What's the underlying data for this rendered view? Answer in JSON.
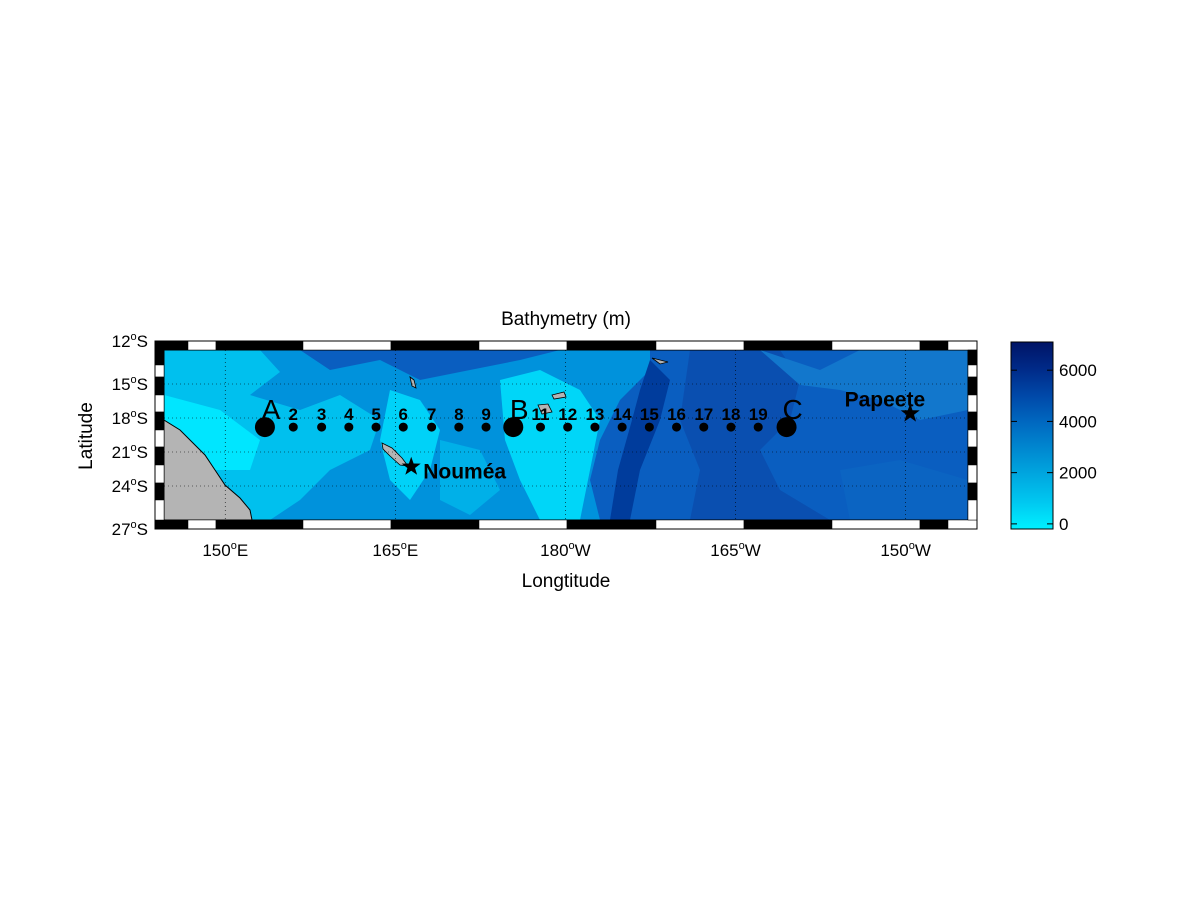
{
  "title": "Bathymetry (m)",
  "xlabel": "Longtitude",
  "ylabel": "Latitude",
  "lat_ticks": [
    {
      "deg": "12",
      "hemi": "S",
      "lat": -12
    },
    {
      "deg": "15",
      "hemi": "S",
      "lat": -15
    },
    {
      "deg": "18",
      "hemi": "S",
      "lat": -18
    },
    {
      "deg": "21",
      "hemi": "S",
      "lat": -21
    },
    {
      "deg": "24",
      "hemi": "S",
      "lat": -24
    },
    {
      "deg": "27",
      "hemi": "S",
      "lat": -27
    }
  ],
  "lon_ticks": [
    {
      "deg": "150",
      "hemi": "E",
      "lon": 150
    },
    {
      "deg": "165",
      "hemi": "E",
      "lon": 165
    },
    {
      "deg": "180",
      "hemi": "W",
      "lon": 180
    },
    {
      "deg": "165",
      "hemi": "W",
      "lon": 195
    },
    {
      "deg": "150",
      "hemi": "W",
      "lon": 210
    }
  ],
  "map_extent": {
    "lon_min": 144.6,
    "lon_max": 215.5,
    "lat_min": -27,
    "lat_max": -12
  },
  "colorbar": {
    "min": -200,
    "max": 7100,
    "ticks": [
      {
        "label": "0",
        "value": 0
      },
      {
        "label": "2000",
        "value": 2000
      },
      {
        "label": "4000",
        "value": 4000
      },
      {
        "label": "6000",
        "value": 6000
      }
    ],
    "colors": [
      "#00f0ff",
      "#00c8f0",
      "#00a8e0",
      "#0088d0",
      "#0068c0",
      "#0048a8",
      "#002a88",
      "#001466"
    ]
  },
  "stations": [
    {
      "label": "A",
      "lon": 153.5,
      "lat": -18.8,
      "major": true
    },
    {
      "label": "2",
      "lon": 156.0,
      "lat": -18.8,
      "major": false
    },
    {
      "label": "3",
      "lon": 158.5,
      "lat": -18.8,
      "major": false
    },
    {
      "label": "4",
      "lon": 160.9,
      "lat": -18.8,
      "major": false
    },
    {
      "label": "5",
      "lon": 163.3,
      "lat": -18.8,
      "major": false
    },
    {
      "label": "6",
      "lon": 165.7,
      "lat": -18.8,
      "major": false
    },
    {
      "label": "7",
      "lon": 168.2,
      "lat": -18.8,
      "major": false
    },
    {
      "label": "8",
      "lon": 170.6,
      "lat": -18.8,
      "major": false
    },
    {
      "label": "9",
      "lon": 173.0,
      "lat": -18.8,
      "major": false
    },
    {
      "label": "B",
      "lon": 175.4,
      "lat": -18.8,
      "major": true
    },
    {
      "label": "11",
      "lon": 177.8,
      "lat": -18.8,
      "major": false
    },
    {
      "label": "12",
      "lon": 180.2,
      "lat": -18.8,
      "major": false
    },
    {
      "label": "13",
      "lon": 182.6,
      "lat": -18.8,
      "major": false
    },
    {
      "label": "14",
      "lon": 185.0,
      "lat": -18.8,
      "major": false
    },
    {
      "label": "15",
      "lon": 187.4,
      "lat": -18.8,
      "major": false
    },
    {
      "label": "16",
      "lon": 189.8,
      "lat": -18.8,
      "major": false
    },
    {
      "label": "17",
      "lon": 192.2,
      "lat": -18.8,
      "major": false
    },
    {
      "label": "18",
      "lon": 194.6,
      "lat": -18.8,
      "major": false
    },
    {
      "label": "19",
      "lon": 197.0,
      "lat": -18.8,
      "major": false
    },
    {
      "label": "C",
      "lon": 199.5,
      "lat": -18.8,
      "major": true
    }
  ],
  "cities": [
    {
      "name": "Nouméa",
      "lon": 166.4,
      "lat": -22.3
    },
    {
      "name": "Papeete",
      "lon": 210.4,
      "lat": -17.6
    }
  ]
}
